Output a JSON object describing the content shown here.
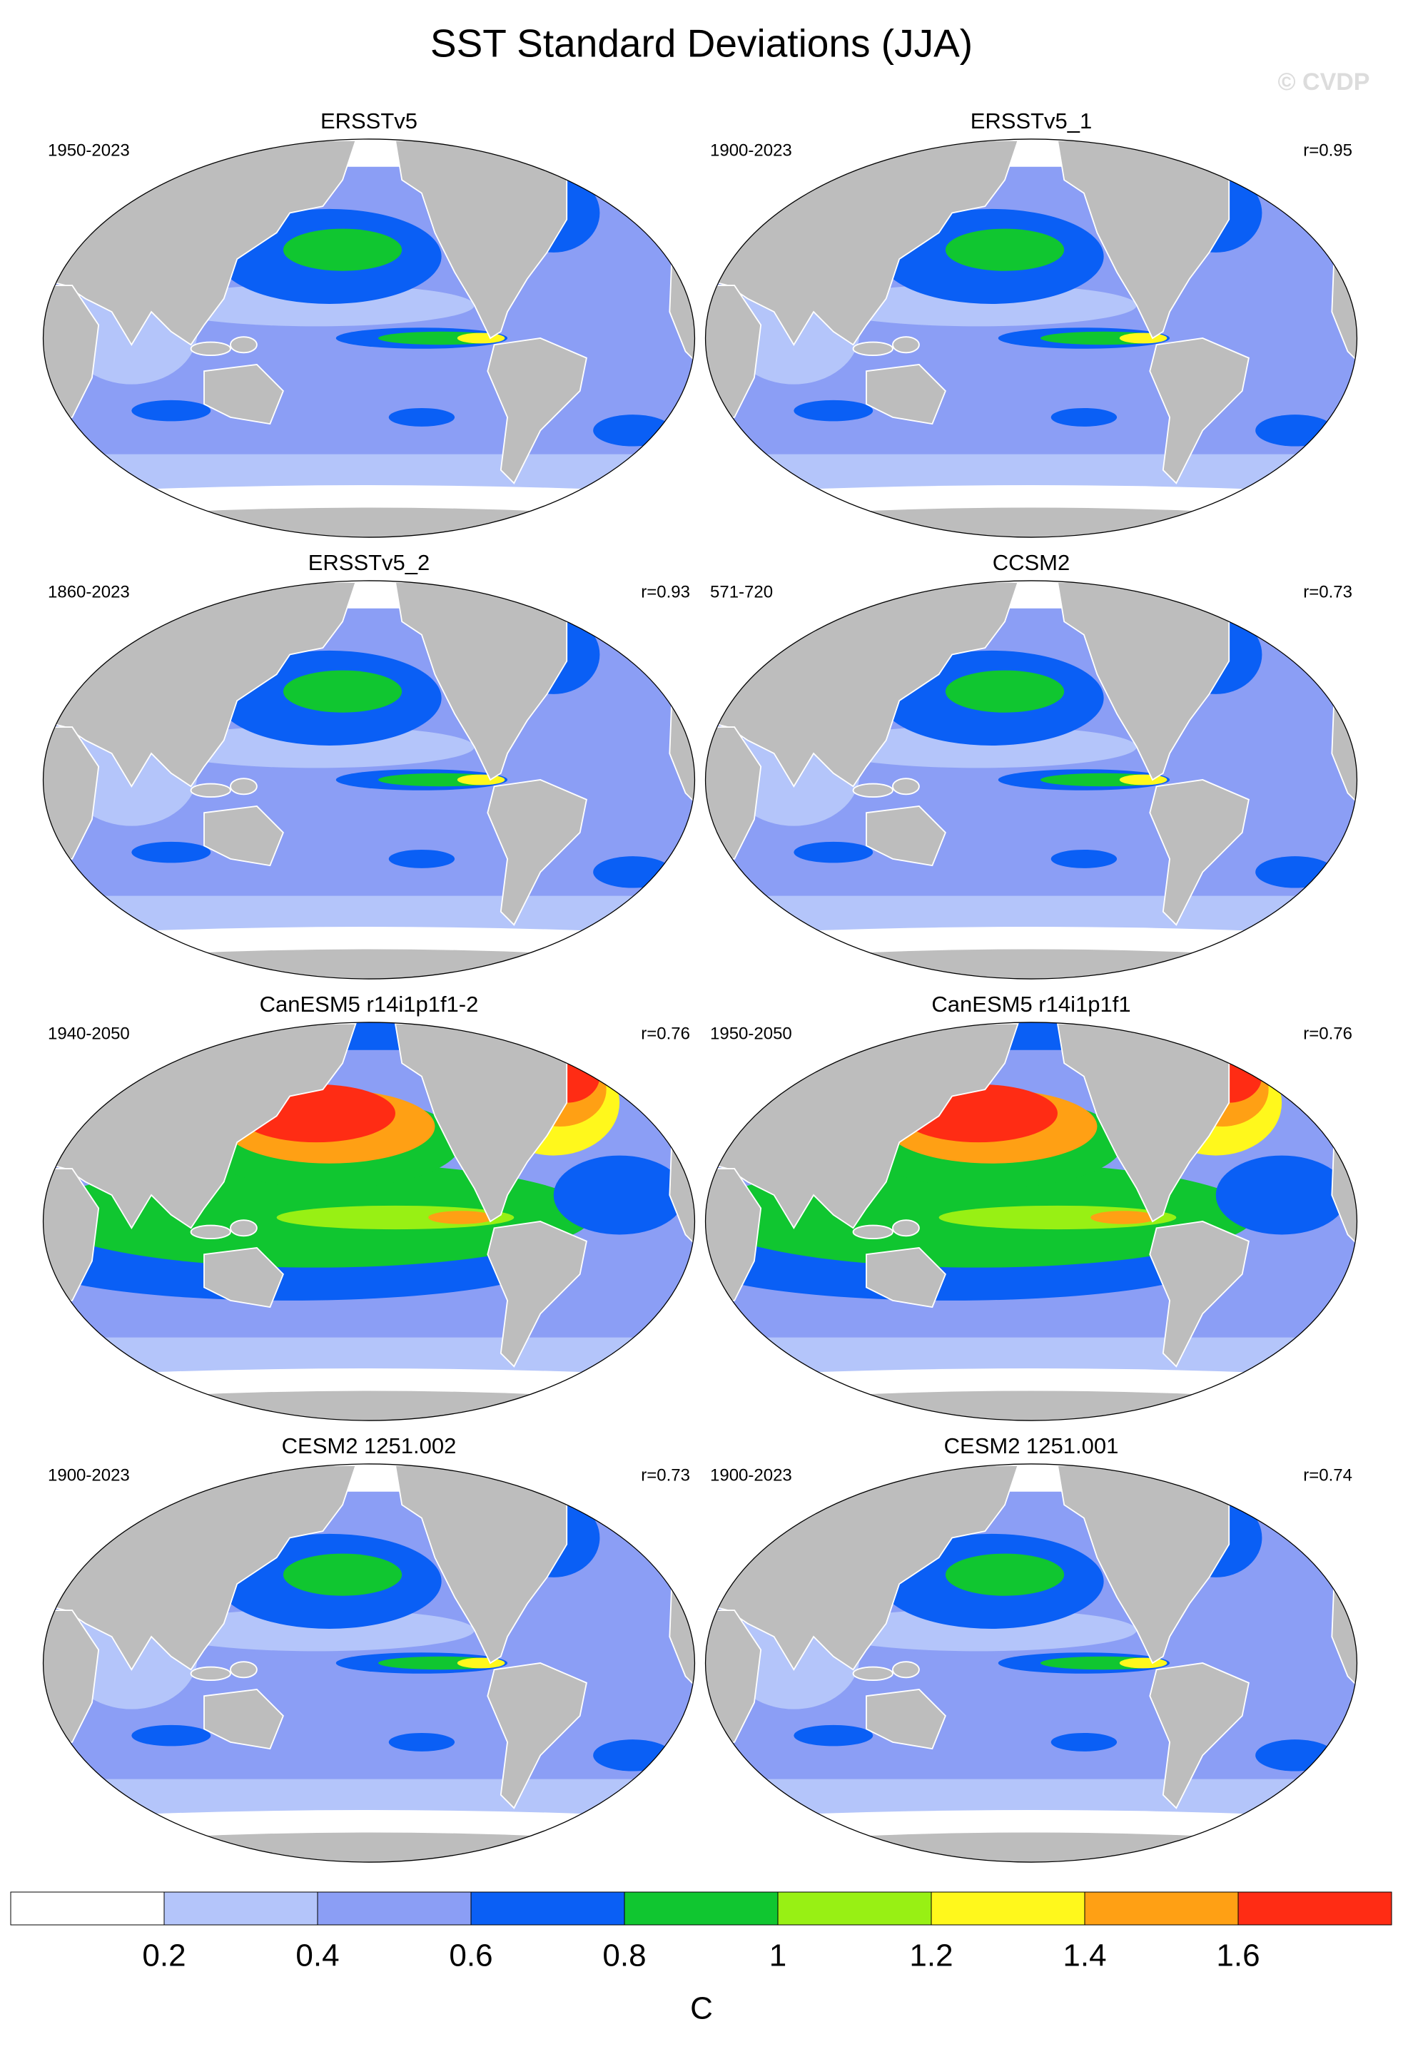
{
  "title": "SST Standard Deviations (JJA)",
  "watermark": "© CVDP",
  "panels": [
    {
      "title": "ERSSTv5",
      "period": "1950-2023"
    },
    {
      "title": "ERSSTv5_1",
      "period": "1900-2023",
      "corr": "r=0.95"
    },
    {
      "title": "ERSSTv5_2",
      "period": "1860-2023",
      "corr": "r=0.93"
    },
    {
      "title": "CCSM2",
      "period": "571-720",
      "corr": "r=0.73"
    },
    {
      "title": "CanESM5 r14i1p1f1-2",
      "period": "1940-2050",
      "corr": "r=0.76"
    },
    {
      "title": "CanESM5 r14i1p1f1",
      "period": "1950-2050",
      "corr": "r=0.76"
    },
    {
      "title": "CESM2 1251.002",
      "period": "1900-2023",
      "corr": "r=0.73"
    },
    {
      "title": "CESM2 1251.001",
      "period": "1900-2023",
      "corr": "r=0.74"
    }
  ],
  "colorbar": {
    "colors": [
      "#ffffff",
      "#b4c5fa",
      "#8b9ef5",
      "#0a5ff5",
      "#10c630",
      "#98f014",
      "#fff81c",
      "#ffa014",
      "#ff2c14"
    ],
    "lim": [
      0,
      1.8
    ],
    "ticks": [
      0.2,
      0.4,
      0.6,
      0.8,
      1,
      1.2,
      1.4,
      1.6
    ],
    "label": "C"
  }
}
